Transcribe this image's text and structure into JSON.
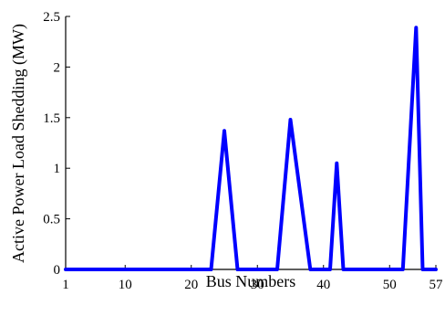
{
  "chart_data": {
    "type": "line",
    "title": "",
    "xlabel": "Bus Numbers",
    "ylabel": "Active Power Load Shedding (MW)",
    "xlim": [
      1,
      57
    ],
    "ylim": [
      0,
      2.5
    ],
    "xticks": [
      1,
      10,
      20,
      30,
      40,
      50,
      57
    ],
    "yticks": [
      0,
      0.5,
      1,
      1.5,
      2,
      2.5
    ],
    "xtick_labels": [
      "1",
      "10",
      "20",
      "30",
      "40",
      "50",
      "57"
    ],
    "ytick_labels": [
      "0",
      "0.5",
      "1",
      "1.5",
      "2",
      "2.5"
    ],
    "grid": false,
    "colors": {
      "series": "#0000ff",
      "axis": "#000000"
    },
    "series": [
      {
        "x": [
          1,
          23,
          25,
          27,
          33,
          35,
          38,
          41,
          42,
          43,
          52,
          54,
          55,
          57
        ],
        "y": [
          0,
          0,
          1.37,
          0,
          0,
          1.48,
          0,
          0,
          1.05,
          0,
          0,
          2.39,
          0,
          0
        ]
      }
    ]
  }
}
